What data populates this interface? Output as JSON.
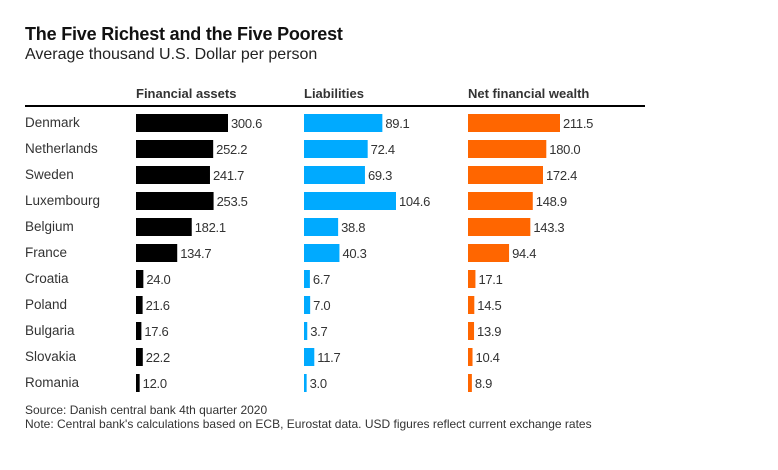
{
  "chart_data": {
    "type": "bar",
    "title": "The Five Richest and the Five Poorest",
    "subtitle": "Average thousand U.S. Dollar per person",
    "categories": [
      "Denmark",
      "Netherlands",
      "Sweden",
      "Luxembourg",
      "Belgium",
      "France",
      "Croatia",
      "Poland",
      "Bulgaria",
      "Slovakia",
      "Romania"
    ],
    "series": [
      {
        "name": "Financial assets",
        "color": "#000000",
        "values": [
          300.6,
          252.2,
          241.7,
          253.5,
          182.1,
          134.7,
          24.0,
          21.6,
          17.6,
          22.2,
          12.0
        ],
        "labels": [
          "300.6",
          "252.2",
          "241.7",
          "253.5",
          "182.1",
          "134.7",
          "24.0",
          "21.6",
          "17.6",
          "22.2",
          "12.0"
        ]
      },
      {
        "name": "Liabilities",
        "color": "#00aaff",
        "values": [
          89.1,
          72.4,
          69.3,
          104.6,
          38.8,
          40.3,
          6.7,
          7.0,
          3.7,
          11.7,
          3.0
        ],
        "labels": [
          "89.1",
          "72.4",
          "69.3",
          "104.6",
          "38.8",
          "40.3",
          "6.7",
          "7.0",
          "3.7",
          "11.7",
          "3.0"
        ]
      },
      {
        "name": "Net financial wealth",
        "color": "#ff6600",
        "values": [
          211.5,
          180.0,
          172.4,
          148.9,
          143.3,
          94.4,
          17.1,
          14.5,
          13.9,
          10.4,
          8.9
        ],
        "labels": [
          "211.5",
          "180.0",
          "172.4",
          "148.9",
          "143.3",
          "94.4",
          "17.1",
          "14.5",
          "13.9",
          "10.4",
          "8.9"
        ]
      }
    ],
    "xlabel": "",
    "ylabel": "",
    "grid": false,
    "legend": "column-headers-top"
  },
  "footer": {
    "source": "Source: Danish central bank 4th quarter 2020",
    "note": "Note: Central bank's calculations based on ECB, Eurostat data. USD figures reflect current exchange rates"
  }
}
